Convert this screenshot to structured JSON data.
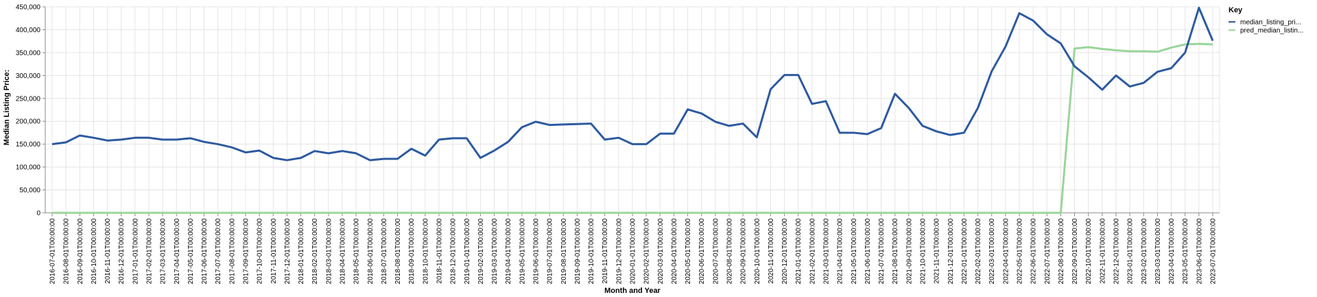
{
  "chart_data": {
    "type": "line",
    "xlabel": "Month and Year",
    "ylabel": "Median Listing Price:",
    "ylim": [
      0,
      450000
    ],
    "yticks": [
      "0",
      "50,000",
      "100,000",
      "150,000",
      "200,000",
      "250,000",
      "300,000",
      "350,000",
      "400,000",
      "450,000"
    ],
    "ytick_values": [
      0,
      50000,
      100000,
      150000,
      200000,
      250000,
      300000,
      350000,
      400000,
      450000
    ],
    "grid": true,
    "legend": {
      "title": "Key",
      "placement": "right",
      "entries": [
        "median_listing_pri...",
        "pred_median_listin..."
      ]
    },
    "categories": [
      "2016-07-01T00:00:00",
      "2016-08-01T00:00:00",
      "2016-09-01T00:00:00",
      "2016-10-01T00:00:00",
      "2016-11-01T00:00:00",
      "2016-12-01T00:00:00",
      "2017-01-01T00:00:00",
      "2017-02-01T00:00:00",
      "2017-03-01T00:00:00",
      "2017-04-01T00:00:00",
      "2017-05-01T00:00:00",
      "2017-06-01T00:00:00",
      "2017-07-01T00:00:00",
      "2017-08-01T00:00:00",
      "2017-09-01T00:00:00",
      "2017-10-01T00:00:00",
      "2017-11-01T00:00:00",
      "2017-12-01T00:00:00",
      "2018-01-01T00:00:00",
      "2018-02-01T00:00:00",
      "2018-03-01T00:00:00",
      "2018-04-01T00:00:00",
      "2018-05-01T00:00:00",
      "2018-06-01T00:00:00",
      "2018-07-01T00:00:00",
      "2018-08-01T00:00:00",
      "2018-09-01T00:00:00",
      "2018-10-01T00:00:00",
      "2018-11-01T00:00:00",
      "2018-12-01T00:00:00",
      "2019-01-01T00:00:00",
      "2019-02-01T00:00:00",
      "2019-03-01T00:00:00",
      "2019-04-01T00:00:00",
      "2019-05-01T00:00:00",
      "2019-06-01T00:00:00",
      "2019-07-01T00:00:00",
      "2019-08-01T00:00:00",
      "2019-09-01T00:00:00",
      "2019-10-01T00:00:00",
      "2019-11-01T00:00:00",
      "2019-12-01T00:00:00",
      "2020-01-01T00:00:00",
      "2020-02-01T00:00:00",
      "2020-03-01T00:00:00",
      "2020-04-01T00:00:00",
      "2020-05-01T00:00:00",
      "2020-06-01T00:00:00",
      "2020-07-01T00:00:00",
      "2020-08-01T00:00:00",
      "2020-09-01T00:00:00",
      "2020-10-01T00:00:00",
      "2020-11-01T00:00:00",
      "2020-12-01T00:00:00",
      "2021-01-01T00:00:00",
      "2021-02-01T00:00:00",
      "2021-03-01T00:00:00",
      "2021-04-01T00:00:00",
      "2021-05-01T00:00:00",
      "2021-06-01T00:00:00",
      "2021-07-01T00:00:00",
      "2021-08-01T00:00:00",
      "2021-09-01T00:00:00",
      "2021-10-01T00:00:00",
      "2021-11-01T00:00:00",
      "2021-12-01T00:00:00",
      "2022-01-01T00:00:00",
      "2022-02-01T00:00:00",
      "2022-03-01T00:00:00",
      "2022-04-01T00:00:00",
      "2022-05-01T00:00:00",
      "2022-06-01T00:00:00",
      "2022-07-01T00:00:00",
      "2022-08-01T00:00:00",
      "2022-09-01T00:00:00",
      "2022-10-01T00:00:00",
      "2022-11-01T00:00:00",
      "2022-12-01T00:00:00",
      "2023-01-01T00:00:00",
      "2023-02-01T00:00:00",
      "2023-03-01T00:00:00",
      "2023-04-01T00:00:00",
      "2023-05-01T00:00:00",
      "2023-06-01T00:00:00",
      "2023-07-01T00:00:00"
    ],
    "series": [
      {
        "name": "median_listing_pri...",
        "color": "#2d5aa0",
        "values": [
          150000,
          154000,
          169000,
          164000,
          158000,
          160000,
          164000,
          164000,
          160000,
          160000,
          163000,
          155000,
          150000,
          143000,
          132000,
          136000,
          120000,
          115000,
          120000,
          135000,
          130000,
          135000,
          130000,
          115000,
          118000,
          118000,
          140000,
          125000,
          160000,
          163000,
          163000,
          120000,
          136000,
          155000,
          187000,
          199000,
          192000,
          193000,
          194000,
          195000,
          160000,
          164000,
          150000,
          150000,
          173000,
          173000,
          226000,
          217000,
          199000,
          190000,
          195000,
          165000,
          270000,
          301000,
          301000,
          238000,
          244000,
          175000,
          175000,
          172000,
          185000,
          260000,
          229000,
          190000,
          178000,
          170000,
          175000,
          229000,
          309000,
          363000,
          436000,
          420000,
          390000,
          370000,
          320000,
          296000,
          269000,
          300000,
          276000,
          284000,
          308000,
          316000,
          350000,
          448000,
          376000
        ]
      },
      {
        "name": "pred_median_listin...",
        "color": "#9ad59a",
        "values": [
          0,
          0,
          0,
          0,
          0,
          0,
          0,
          0,
          0,
          0,
          0,
          0,
          0,
          0,
          0,
          0,
          0,
          0,
          0,
          0,
          0,
          0,
          0,
          0,
          0,
          0,
          0,
          0,
          0,
          0,
          0,
          0,
          0,
          0,
          0,
          0,
          0,
          0,
          0,
          0,
          0,
          0,
          0,
          0,
          0,
          0,
          0,
          0,
          0,
          0,
          0,
          0,
          0,
          0,
          0,
          0,
          0,
          0,
          0,
          0,
          0,
          0,
          0,
          0,
          0,
          0,
          0,
          0,
          0,
          0,
          0,
          0,
          0,
          0,
          359000,
          362000,
          358000,
          355000,
          353000,
          353000,
          352000,
          361000,
          368000,
          369000,
          368000
        ]
      }
    ]
  }
}
